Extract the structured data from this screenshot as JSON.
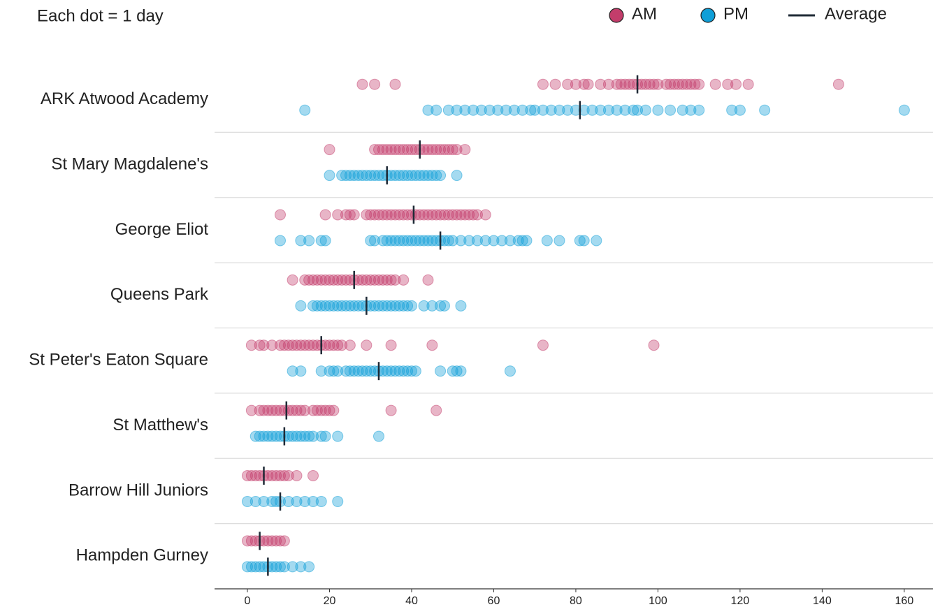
{
  "chart_data": {
    "type": "strip",
    "annotation": "Each dot = 1 day",
    "categories": [
      "ARK Atwood Academy",
      "St Mary Magdalene's",
      "George Eliot",
      "Queens Park",
      "St Peter's Eaton Square",
      "St Matthew's",
      "Barrow Hill Juniors",
      "Hampden Gurney"
    ],
    "series": [
      {
        "name": "AM",
        "color": "#c33d6b",
        "values": [
          [
            28,
            31,
            36,
            72,
            75,
            78,
            80,
            82,
            83,
            86,
            88,
            90,
            91,
            92,
            93,
            94,
            95,
            96,
            97,
            98,
            99,
            100,
            102,
            103,
            104,
            105,
            106,
            107,
            108,
            109,
            110,
            114,
            117,
            119,
            122,
            144
          ],
          [
            20,
            31,
            32,
            33,
            34,
            35,
            36,
            37,
            38,
            39,
            40,
            41,
            42,
            43,
            44,
            45,
            46,
            47,
            48,
            49,
            50,
            51,
            53
          ],
          [
            8,
            19,
            22,
            24,
            25,
            26,
            29,
            30,
            31,
            32,
            33,
            34,
            35,
            36,
            37,
            38,
            39,
            40,
            41,
            42,
            43,
            44,
            45,
            46,
            47,
            48,
            49,
            50,
            51,
            52,
            53,
            54,
            55,
            56,
            58
          ],
          [
            11,
            14,
            15,
            16,
            17,
            18,
            19,
            20,
            21,
            22,
            23,
            24,
            25,
            26,
            27,
            28,
            29,
            30,
            31,
            32,
            33,
            34,
            35,
            36,
            38,
            44
          ],
          [
            1,
            3,
            4,
            6,
            8,
            9,
            10,
            11,
            12,
            13,
            14,
            15,
            16,
            17,
            18,
            19,
            20,
            21,
            22,
            23,
            25,
            29,
            35,
            45,
            72,
            99
          ],
          [
            1,
            3,
            4,
            5,
            6,
            7,
            8,
            9,
            10,
            11,
            12,
            13,
            14,
            16,
            17,
            18,
            19,
            20,
            21,
            35,
            46
          ],
          [
            0,
            1,
            2,
            3,
            4,
            5,
            6,
            7,
            8,
            9,
            10,
            12,
            16
          ],
          [
            0,
            1,
            2,
            3,
            4,
            5,
            6,
            7,
            8,
            9
          ]
        ],
        "means": [
          95,
          42,
          40.5,
          26,
          18,
          9.5,
          4,
          3
        ]
      },
      {
        "name": "PM",
        "color": "#0f9fd8",
        "values": [
          [
            14,
            44,
            46,
            49,
            51,
            53,
            55,
            57,
            59,
            61,
            63,
            65,
            67,
            69,
            70,
            72,
            74,
            76,
            78,
            80,
            82,
            84,
            86,
            88,
            90,
            92,
            94,
            95,
            97,
            100,
            103,
            106,
            108,
            110,
            118,
            120,
            126,
            160
          ],
          [
            20,
            23,
            24,
            25,
            26,
            27,
            28,
            29,
            30,
            31,
            32,
            33,
            34,
            35,
            36,
            37,
            38,
            39,
            40,
            41,
            42,
            43,
            44,
            45,
            46,
            47,
            51
          ],
          [
            8,
            13,
            15,
            18,
            19,
            30,
            31,
            33,
            34,
            35,
            36,
            37,
            38,
            39,
            40,
            41,
            42,
            43,
            44,
            45,
            46,
            47,
            48,
            49,
            50,
            52,
            54,
            56,
            58,
            60,
            62,
            64,
            66,
            67,
            68,
            73,
            76,
            81,
            82,
            85
          ],
          [
            13,
            16,
            17,
            18,
            19,
            20,
            21,
            22,
            23,
            24,
            25,
            26,
            27,
            28,
            29,
            30,
            31,
            32,
            33,
            34,
            35,
            36,
            37,
            38,
            39,
            40,
            43,
            45,
            47,
            48,
            52
          ],
          [
            11,
            13,
            18,
            20,
            21,
            22,
            24,
            25,
            26,
            27,
            28,
            29,
            30,
            31,
            32,
            33,
            34,
            35,
            36,
            37,
            38,
            39,
            40,
            41,
            47,
            50,
            51,
            52,
            64
          ],
          [
            2,
            3,
            4,
            5,
            6,
            7,
            8,
            9,
            10,
            11,
            12,
            13,
            14,
            15,
            16,
            18,
            19,
            22,
            32
          ],
          [
            0,
            2,
            4,
            6,
            7,
            8,
            10,
            12,
            14,
            16,
            18,
            22
          ],
          [
            0,
            1,
            2,
            3,
            4,
            5,
            6,
            7,
            8,
            9,
            11,
            13,
            15
          ]
        ],
        "means": [
          81,
          34,
          47,
          29,
          32,
          9,
          8,
          5
        ]
      }
    ],
    "average": {
      "name": "Average",
      "color": "#1f2a36"
    },
    "xlim": [
      -8,
      167
    ],
    "xticks": [
      0,
      20,
      40,
      60,
      80,
      100,
      120,
      140,
      160
    ],
    "legend": "top-right"
  }
}
